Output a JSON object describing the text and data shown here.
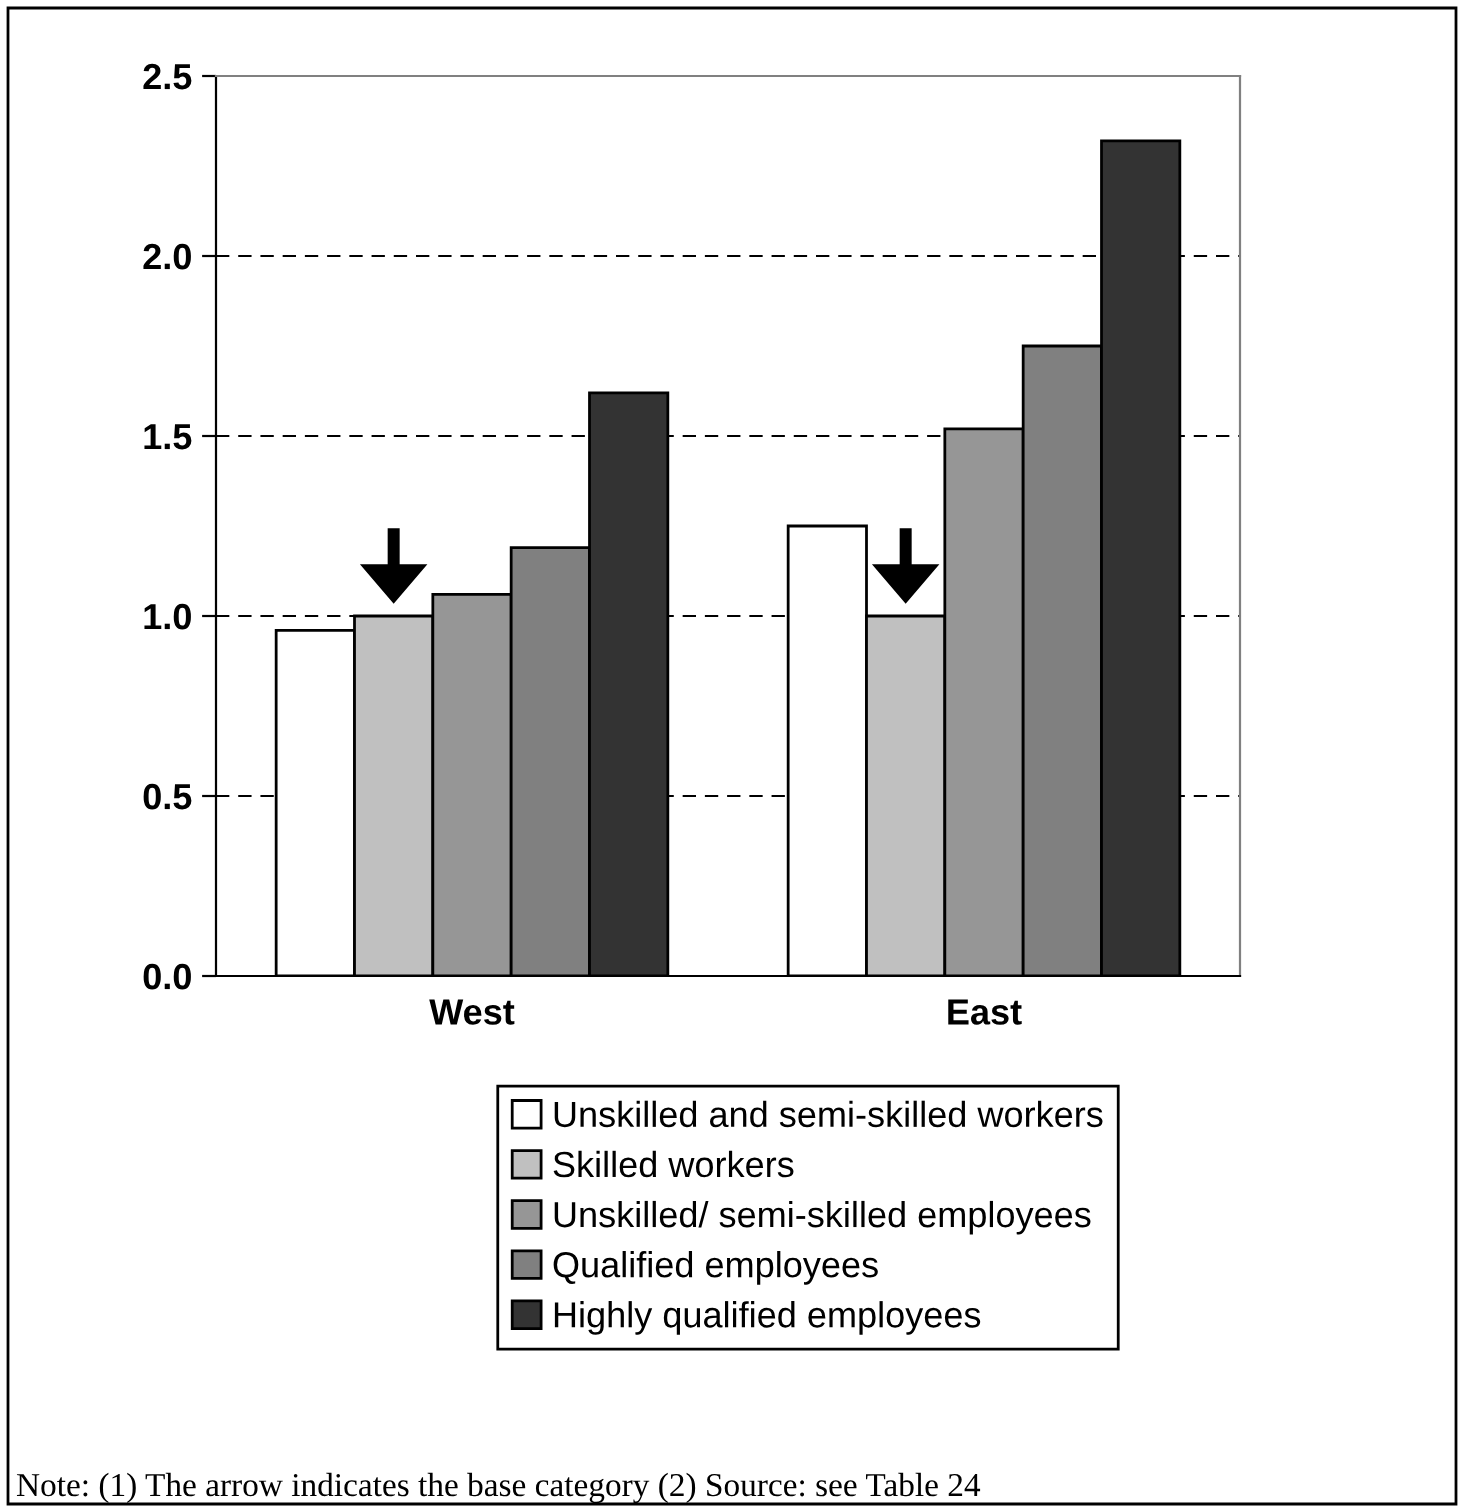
{
  "chart_data": {
    "type": "bar",
    "categories": [
      "West",
      "East"
    ],
    "series": [
      {
        "name": "Unskilled and semi-skilled workers",
        "color": "#ffffff",
        "values": [
          0.96,
          1.25
        ]
      },
      {
        "name": "Skilled workers",
        "color": "#c0c0c0",
        "values": [
          1.0,
          1.0
        ]
      },
      {
        "name": "Unskilled/ semi-skilled employees",
        "color": "#969696",
        "values": [
          1.06,
          1.52
        ]
      },
      {
        "name": "Qualified employees",
        "color": "#808080",
        "values": [
          1.19,
          1.75
        ]
      },
      {
        "name": "Highly qualified employees",
        "color": "#333333",
        "values": [
          1.62,
          2.32
        ]
      }
    ],
    "ylim": [
      0,
      2.5
    ],
    "yticks": [
      {
        "value": 0,
        "label": "0.0"
      },
      {
        "value": 0.5,
        "label": "0.5"
      },
      {
        "value": 1,
        "label": "1.0"
      },
      {
        "value": 1.5,
        "label": "1.5"
      },
      {
        "value": 2,
        "label": "2.0"
      },
      {
        "value": 2.5,
        "label": "2.5"
      }
    ],
    "grid": "y",
    "legend": "bottom",
    "annotations": [
      "Note: (1) The arrow indicates the base category (2) Source: see Table 24"
    ]
  }
}
